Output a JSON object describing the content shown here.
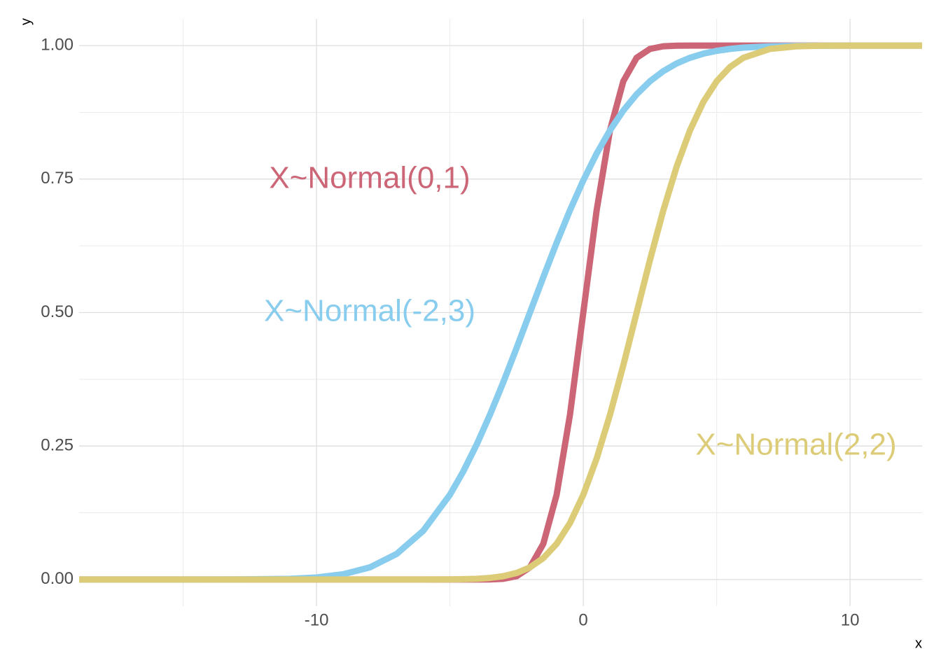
{
  "chart_data": {
    "type": "line",
    "x_label": "x",
    "y_label": "y",
    "x": [
      -18.9,
      -17,
      -15,
      -13,
      -11,
      -10,
      -9,
      -8,
      -7,
      -6,
      -5,
      -4.5,
      -4,
      -3.5,
      -3,
      -2.5,
      -2,
      -1.5,
      -1,
      -0.5,
      0,
      0.5,
      1,
      1.5,
      2,
      2.5,
      3,
      3.5,
      4,
      4.5,
      5,
      5.5,
      6,
      7,
      8,
      9,
      10,
      12.7
    ],
    "series": [
      {
        "name": "X~Normal(0,1)",
        "color": "#CC6677",
        "values": [
          0,
          0,
          0,
          0,
          0,
          0,
          0,
          0,
          0,
          0,
          0,
          0,
          0,
          0.0002,
          0.0013,
          0.0062,
          0.0228,
          0.0668,
          0.1587,
          0.3085,
          0.5,
          0.6915,
          0.8413,
          0.9332,
          0.9772,
          0.9938,
          0.9987,
          0.9998,
          1,
          1,
          1,
          1,
          1,
          1,
          1,
          1,
          1,
          1
        ]
      },
      {
        "name": "X~Normal(-2,3)",
        "color": "#88CCEE",
        "values": [
          0,
          0,
          0,
          0.0001,
          0.0013,
          0.0038,
          0.0098,
          0.0228,
          0.0478,
          0.0912,
          0.1587,
          0.2023,
          0.2525,
          0.3085,
          0.3694,
          0.4338,
          0.5,
          0.5662,
          0.6306,
          0.6915,
          0.7475,
          0.7977,
          0.8413,
          0.8783,
          0.9088,
          0.9332,
          0.9522,
          0.9666,
          0.9772,
          0.9849,
          0.9902,
          0.9938,
          0.9962,
          0.9987,
          0.9996,
          0.9999,
          1,
          1
        ]
      },
      {
        "name": "X~Normal(2,2)",
        "color": "#DDCC77",
        "values": [
          0,
          0,
          0,
          0,
          0,
          0,
          0,
          0,
          0,
          0,
          0.0002,
          0.0006,
          0.0013,
          0.003,
          0.0062,
          0.0122,
          0.0228,
          0.0401,
          0.0668,
          0.1056,
          0.1587,
          0.2266,
          0.3085,
          0.4013,
          0.5,
          0.5987,
          0.6915,
          0.7734,
          0.8413,
          0.8944,
          0.9332,
          0.9599,
          0.9772,
          0.9938,
          0.9987,
          0.9998,
          1,
          1
        ]
      }
    ],
    "xlim": [
      -18.9,
      12.7
    ],
    "ylim": [
      -0.05,
      1.05
    ],
    "xticks": [
      -10,
      0,
      10
    ],
    "xminor": [
      -15,
      -5,
      5
    ],
    "yticks": [
      {
        "value": 0,
        "label": "0.00"
      },
      {
        "value": 0.25,
        "label": "0.25"
      },
      {
        "value": 0.5,
        "label": "0.50"
      },
      {
        "value": 0.75,
        "label": "0.75"
      },
      {
        "value": 1,
        "label": "1.00"
      }
    ],
    "yminor": [
      0.125,
      0.375,
      0.625,
      0.875
    ],
    "grid": true
  }
}
